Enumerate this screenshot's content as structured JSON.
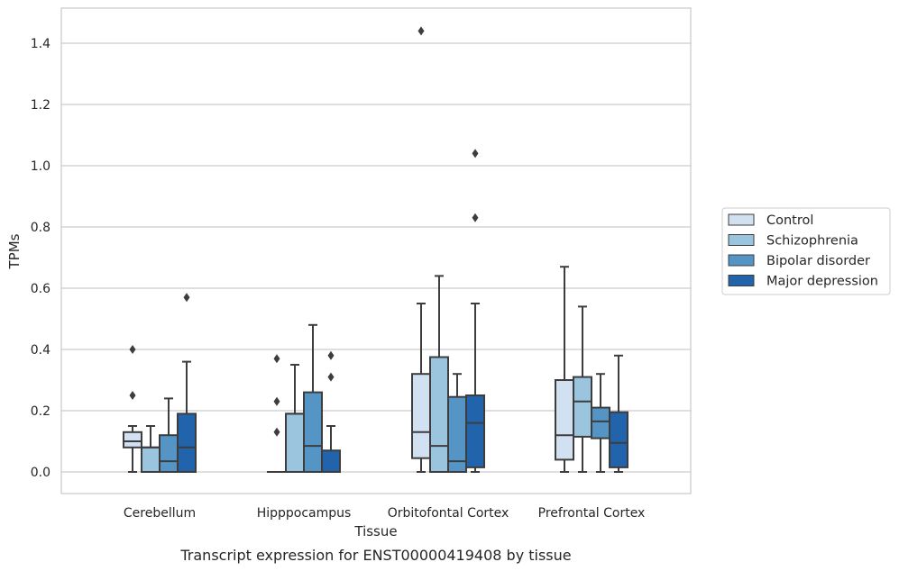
{
  "caption": "Transcript expression for ENST00000419408 by tissue",
  "chart_data": {
    "type": "box",
    "xlabel": "Tissue",
    "ylabel": "TPMs",
    "ylim": [
      -0.07,
      1.52
    ],
    "yticks": [
      "0.0",
      "0.2",
      "0.4",
      "0.6",
      "0.8",
      "1.0",
      "1.2",
      "1.4"
    ],
    "grid": "horizontal",
    "legend_position": "right",
    "categories": [
      "Cerebellum",
      "Hipppocampus",
      "Orbitofontal Cortex",
      "Prefrontal Cortex"
    ],
    "series": [
      {
        "name": "Control",
        "color": "#d1e1f1",
        "boxes": [
          {
            "whisker_low": 0.0,
            "q1": 0.08,
            "median": 0.1,
            "q3": 0.13,
            "whisker_high": 0.15,
            "outliers": [
              0.25,
              0.4
            ]
          },
          {
            "whisker_low": 0.0,
            "q1": 0.0,
            "median": 0.0,
            "q3": 0.0,
            "whisker_high": 0.0,
            "outliers": [
              0.13,
              0.23,
              0.37
            ]
          },
          {
            "whisker_low": 0.0,
            "q1": 0.045,
            "median": 0.13,
            "q3": 0.32,
            "whisker_high": 0.55,
            "outliers": [
              1.44
            ]
          },
          {
            "whisker_low": 0.0,
            "q1": 0.04,
            "median": 0.12,
            "q3": 0.3,
            "whisker_high": 0.67,
            "outliers": []
          }
        ]
      },
      {
        "name": "Schizophrenia",
        "color": "#9bc5de",
        "boxes": [
          {
            "whisker_low": 0.0,
            "q1": 0.0,
            "median": 0.08,
            "q3": 0.08,
            "whisker_high": 0.15,
            "outliers": []
          },
          {
            "whisker_low": 0.0,
            "q1": 0.0,
            "median": 0.19,
            "q3": 0.19,
            "whisker_high": 0.35,
            "outliers": []
          },
          {
            "whisker_low": 0.0,
            "q1": 0.0,
            "median": 0.085,
            "q3": 0.375,
            "whisker_high": 0.64,
            "outliers": []
          },
          {
            "whisker_low": 0.0,
            "q1": 0.115,
            "median": 0.23,
            "q3": 0.31,
            "whisker_high": 0.54,
            "outliers": []
          }
        ]
      },
      {
        "name": "Bipolar disorder",
        "color": "#5595c6",
        "boxes": [
          {
            "whisker_low": 0.0,
            "q1": 0.0,
            "median": 0.035,
            "q3": 0.12,
            "whisker_high": 0.24,
            "outliers": []
          },
          {
            "whisker_low": 0.0,
            "q1": 0.0,
            "median": 0.085,
            "q3": 0.26,
            "whisker_high": 0.48,
            "outliers": []
          },
          {
            "whisker_low": 0.0,
            "q1": 0.0,
            "median": 0.035,
            "q3": 0.245,
            "whisker_high": 0.32,
            "outliers": []
          },
          {
            "whisker_low": 0.0,
            "q1": 0.11,
            "median": 0.165,
            "q3": 0.21,
            "whisker_high": 0.32,
            "outliers": []
          }
        ]
      },
      {
        "name": "Major depression",
        "color": "#2164ab",
        "boxes": [
          {
            "whisker_low": 0.0,
            "q1": 0.0,
            "median": 0.08,
            "q3": 0.19,
            "whisker_high": 0.36,
            "outliers": [
              0.57
            ]
          },
          {
            "whisker_low": 0.0,
            "q1": 0.0,
            "median": 0.0,
            "q3": 0.07,
            "whisker_high": 0.15,
            "outliers": [
              0.31,
              0.38
            ]
          },
          {
            "whisker_low": 0.0,
            "q1": 0.015,
            "median": 0.16,
            "q3": 0.25,
            "whisker_high": 0.55,
            "outliers": [
              0.83,
              1.04
            ]
          },
          {
            "whisker_low": 0.0,
            "q1": 0.015,
            "median": 0.095,
            "q3": 0.195,
            "whisker_high": 0.38,
            "outliers": []
          }
        ]
      }
    ]
  }
}
